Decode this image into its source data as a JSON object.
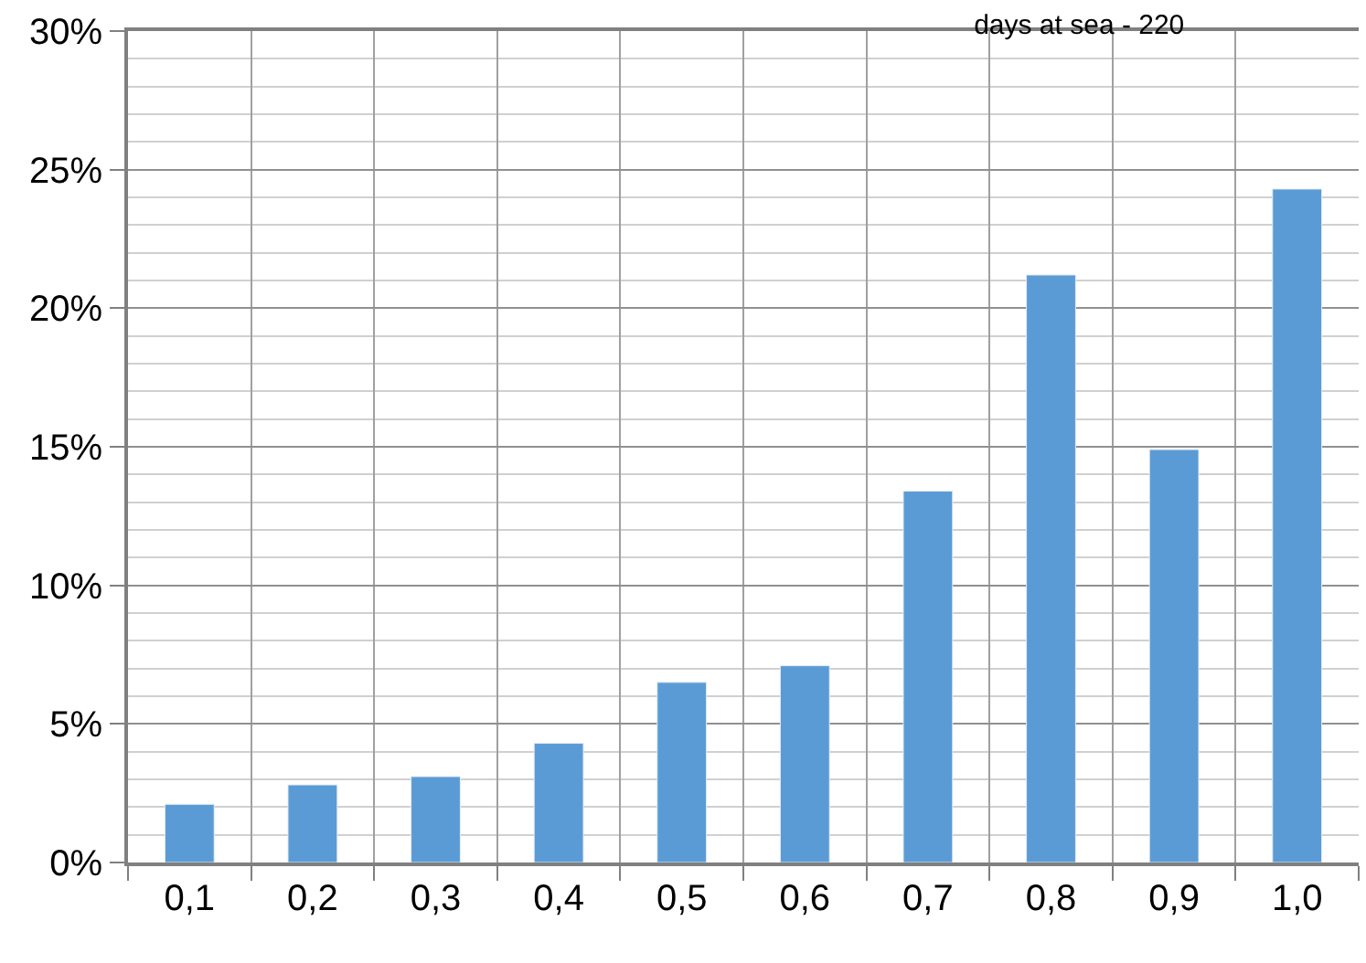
{
  "chart_data": {
    "type": "bar",
    "title": "days at sea - 220",
    "categories": [
      "0,1",
      "0,2",
      "0,3",
      "0,4",
      "0,5",
      "0,6",
      "0,7",
      "0,8",
      "0,9",
      "1,0"
    ],
    "values": [
      2.1,
      2.8,
      3.1,
      4.3,
      6.5,
      7.1,
      13.4,
      21.2,
      14.9,
      24.3
    ],
    "color": "#5b9bd5",
    "ylim": [
      0,
      30
    ],
    "yticks": [
      {
        "value": 0,
        "label": "0%"
      },
      {
        "value": 5,
        "label": "5%"
      },
      {
        "value": 10,
        "label": "10%"
      },
      {
        "value": 15,
        "label": "15%"
      },
      {
        "value": 20,
        "label": "20%"
      },
      {
        "value": 25,
        "label": "25%"
      },
      {
        "value": 30,
        "label": "30%"
      }
    ],
    "grid": true,
    "legend": false
  }
}
